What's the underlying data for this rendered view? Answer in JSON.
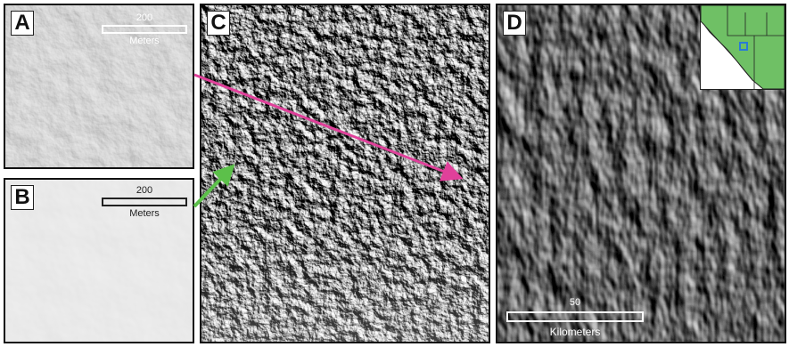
{
  "panels": {
    "a": {
      "label": "A",
      "scale_value": "200",
      "scale_unit": "Meters",
      "scale_color": "#ffffff"
    },
    "b": {
      "label": "B",
      "scale_value": "200",
      "scale_unit": "Meters",
      "scale_color": "#222222"
    },
    "c": {
      "label": "C"
    },
    "d": {
      "label": "D",
      "scale_value": "50",
      "scale_unit": "Kilometers",
      "scale_color": "#ffffff"
    }
  },
  "colors": {
    "magenta_arrow": "#e0409a",
    "green_arrow": "#5cc04a",
    "inset_land": "#6fc065",
    "inset_marker": "#2a7bd6"
  },
  "icons": [
    "magenta-arrow-icon",
    "green-arrow-icon",
    "locator-map-icon"
  ]
}
